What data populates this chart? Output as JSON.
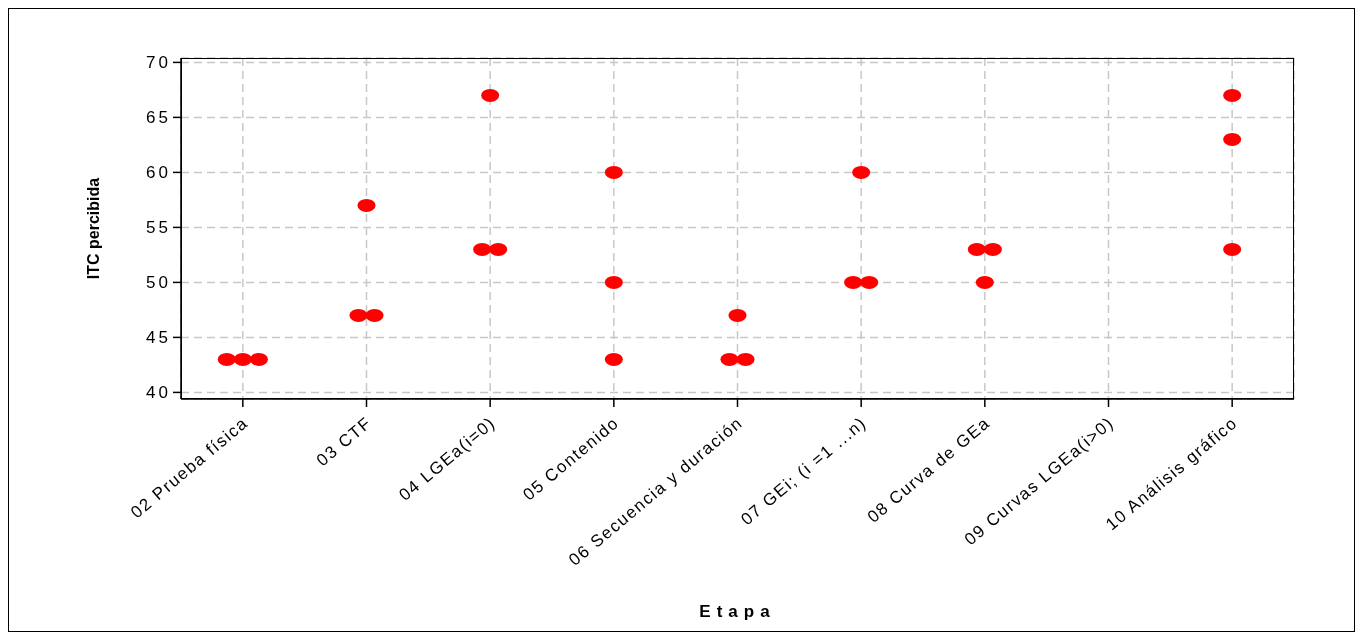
{
  "chart_data": {
    "type": "scatter",
    "xlabel": "Etapa",
    "ylabel": "ITC percibida",
    "categories": [
      "02 Prueba física",
      "03 CTF",
      "04 LGEa(i=0)",
      "05 Contenido",
      "06 Secuencia y duración",
      "07 GEi; (i =1 ...n)",
      "08 Curva de GEa",
      "09 Curvas LGEa(i>0)",
      "10 Análisis gráfico"
    ],
    "series": [
      {
        "color": "#ff0000",
        "values": [
          43,
          47,
          53,
          43,
          43,
          50,
          50,
          null,
          53
        ]
      },
      {
        "color": "#ff0000",
        "values": [
          43,
          47,
          53,
          50,
          43,
          50,
          53,
          null,
          63
        ]
      },
      {
        "color": "#ff0000",
        "values": [
          43,
          57,
          67,
          60,
          47,
          60,
          53,
          null,
          67
        ]
      }
    ],
    "ylim": [
      39.4,
      70.4
    ],
    "yticks": [
      40,
      45,
      50,
      55,
      60,
      65,
      70
    ],
    "grid": true,
    "marker": "circle"
  }
}
